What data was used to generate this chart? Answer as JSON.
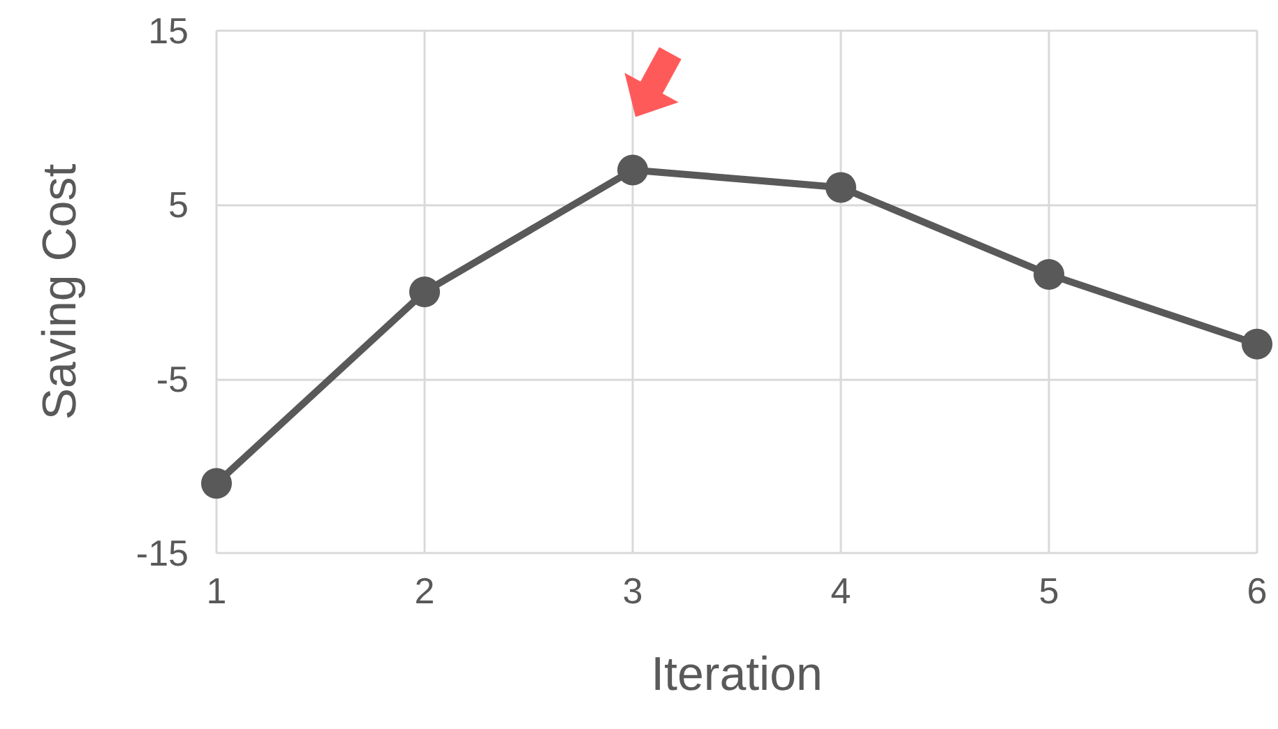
{
  "chart_data": {
    "type": "line",
    "xlabel": "Iteration",
    "ylabel": "Saving Cost",
    "x": [
      1,
      2,
      3,
      4,
      5,
      6
    ],
    "series": [
      {
        "color": "#595959",
        "values": [
          -11,
          0,
          7,
          6,
          1,
          -3
        ]
      }
    ],
    "xlim": [
      1,
      6
    ],
    "xticks": [
      1,
      2,
      3,
      4,
      5,
      6
    ],
    "ylim": [
      -15,
      15
    ],
    "yticks": [
      -15,
      -5,
      5,
      15
    ],
    "grid": true,
    "marker": "circle",
    "line_style": "solid"
  }
}
